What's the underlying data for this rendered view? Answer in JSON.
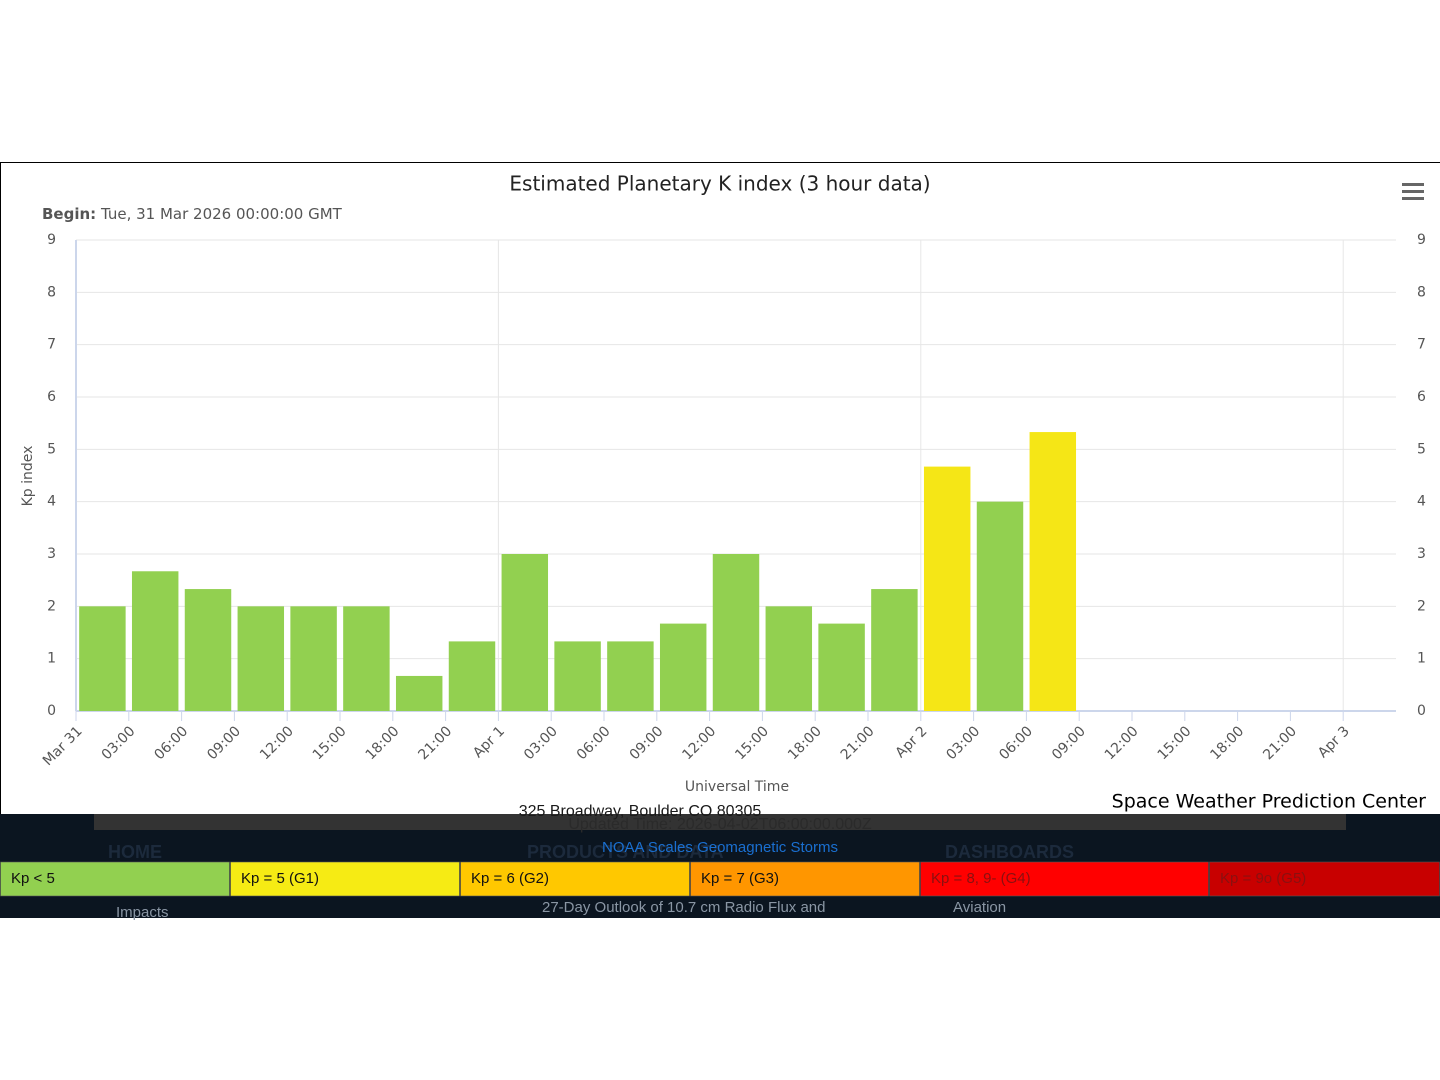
{
  "chart_data": {
    "type": "bar",
    "title": "Estimated Planetary K index (3 hour data)",
    "subtitle_label": "Begin:",
    "subtitle": "Tue, 31 Mar 2026 00:00:00 GMT",
    "xlabel": "Universal Time",
    "ylabel": "Kp index",
    "credit": "Space Weather Prediction Center",
    "x": [
      1.5,
      4.5,
      7.5,
      10.5,
      13.5,
      16.5,
      19.5,
      22.5,
      25.5,
      28.5,
      31.5,
      34.5,
      37.5,
      40.5,
      43.5,
      46.5,
      49.5,
      52.5,
      55.5
    ],
    "values": [
      2,
      2.67,
      2.33,
      2,
      2,
      2,
      0.67,
      1.33,
      3,
      1.33,
      1.33,
      1.67,
      3,
      2,
      1.67,
      2.33,
      4.67,
      4,
      5.33
    ],
    "colors": [
      "#92d050",
      "#92d050",
      "#92d050",
      "#92d050",
      "#92d050",
      "#92d050",
      "#92d050",
      "#92d050",
      "#92d050",
      "#92d050",
      "#92d050",
      "#92d050",
      "#92d050",
      "#92d050",
      "#92d050",
      "#92d050",
      "#f5e616",
      "#92d050",
      "#f5e616"
    ],
    "xlim": [
      0,
      75
    ],
    "xticks": [
      {
        "value": 0,
        "label": "Mar 31"
      },
      {
        "value": 3,
        "label": "03:00"
      },
      {
        "value": 6,
        "label": "06:00"
      },
      {
        "value": 9,
        "label": "09:00"
      },
      {
        "value": 12,
        "label": "12:00"
      },
      {
        "value": 15,
        "label": "15:00"
      },
      {
        "value": 18,
        "label": "18:00"
      },
      {
        "value": 21,
        "label": "21:00"
      },
      {
        "value": 24,
        "label": "Apr 1"
      },
      {
        "value": 27,
        "label": "03:00"
      },
      {
        "value": 30,
        "label": "06:00"
      },
      {
        "value": 33,
        "label": "09:00"
      },
      {
        "value": 36,
        "label": "12:00"
      },
      {
        "value": 39,
        "label": "15:00"
      },
      {
        "value": 42,
        "label": "18:00"
      },
      {
        "value": 45,
        "label": "21:00"
      },
      {
        "value": 48,
        "label": "Apr 2"
      },
      {
        "value": 51,
        "label": "03:00"
      },
      {
        "value": 54,
        "label": "06:00"
      },
      {
        "value": 57,
        "label": "09:00"
      },
      {
        "value": 60,
        "label": "12:00"
      },
      {
        "value": 63,
        "label": "15:00"
      },
      {
        "value": 66,
        "label": "18:00"
      },
      {
        "value": 69,
        "label": "21:00"
      },
      {
        "value": 72,
        "label": "Apr 3"
      }
    ],
    "ylim": [
      0,
      9
    ],
    "yticks": [
      0,
      1,
      2,
      3,
      4,
      5,
      6,
      7,
      8,
      9
    ],
    "y2lim": [
      0,
      9
    ],
    "y2ticks": [
      0,
      1,
      2,
      3,
      4,
      5,
      6,
      7,
      8,
      9
    ],
    "grid": true
  },
  "page": {
    "address": "325 Broadway, Boulder CO 80305",
    "updated": "Updated Time: 2026-04-02T06:00:00.000Z",
    "nav": [
      "HOME",
      "PRODUCTS AND DATA",
      "DASHBOARDS"
    ],
    "link": "NOAA Scales Geomagnetic Storms",
    "scale_legend": [
      {
        "label": "Kp < 5",
        "color": "#92d050"
      },
      {
        "label": "Kp = 5 (G1)",
        "color": "#f6eb14"
      },
      {
        "label": "Kp = 6 (G2)",
        "color": "#ffc800"
      },
      {
        "label": "Kp = 7 (G3)",
        "color": "#ff9600"
      },
      {
        "label": "Kp = 8, 9- (G4)",
        "color": "#ff0000"
      },
      {
        "label": "Kp = 9o (G5)",
        "color": "#c80000"
      }
    ],
    "menu": [
      "Impacts",
      "27-Day Outlook of 10.7 cm Radio Flux and",
      "Aviation"
    ]
  }
}
